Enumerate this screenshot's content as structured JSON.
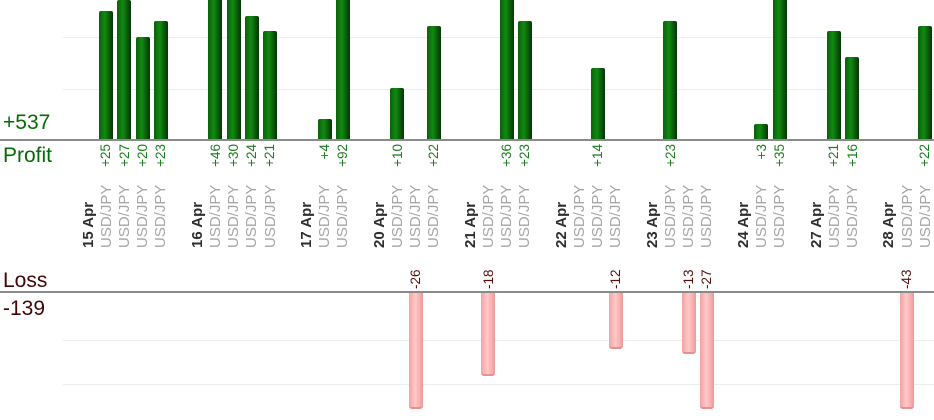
{
  "chart_data": {
    "type": "bar",
    "orientation": "vertical",
    "grid": true,
    "value_labels_rotated": true,
    "profit": {
      "total": "+537",
      "title": "Profit"
    },
    "loss": {
      "title": "Loss",
      "total": "-139"
    },
    "groups": [
      {
        "date": "15 Apr",
        "trades": [
          {
            "symbol": "USD/JPY",
            "value": 25,
            "label": "+25"
          },
          {
            "symbol": "USD/JPY",
            "value": 27,
            "label": "+27"
          },
          {
            "symbol": "USD/JPY",
            "value": 20,
            "label": "+20"
          },
          {
            "symbol": "USD/JPY",
            "value": 23,
            "label": "+23"
          }
        ]
      },
      {
        "date": "16 Apr",
        "trades": [
          {
            "symbol": "USD/JPY",
            "value": 46,
            "label": "+46"
          },
          {
            "symbol": "USD/JPY",
            "value": 30,
            "label": "+30"
          },
          {
            "symbol": "USD/JPY",
            "value": 24,
            "label": "+24"
          },
          {
            "symbol": "USD/JPY",
            "value": 21,
            "label": "+21"
          }
        ]
      },
      {
        "date": "17 Apr",
        "trades": [
          {
            "symbol": "USD/JPY",
            "value": 4,
            "label": "+4"
          },
          {
            "symbol": "USD/JPY",
            "value": 92,
            "label": "+92"
          }
        ]
      },
      {
        "date": "20 Apr",
        "trades": [
          {
            "symbol": "USD/JPY",
            "value": 10,
            "label": "+10"
          },
          {
            "symbol": "USD/JPY",
            "value": -26,
            "label": "-26"
          },
          {
            "symbol": "USD/JPY",
            "value": 22,
            "label": "+22"
          }
        ]
      },
      {
        "date": "21 Apr",
        "trades": [
          {
            "symbol": "USD/JPY",
            "value": -18,
            "label": "-18"
          },
          {
            "symbol": "USD/JPY",
            "value": 36,
            "label": "+36"
          },
          {
            "symbol": "USD/JPY",
            "value": 23,
            "label": "+23"
          }
        ]
      },
      {
        "date": "22 Apr",
        "trades": [
          {
            "symbol": "USD/JPY",
            "value": null,
            "label": ""
          },
          {
            "symbol": "USD/JPY",
            "value": 14,
            "label": "+14"
          },
          {
            "symbol": "USD/JPY",
            "value": -12,
            "label": "-12"
          }
        ]
      },
      {
        "date": "23 Apr",
        "trades": [
          {
            "symbol": "USD/JPY",
            "value": 23,
            "label": "+23"
          },
          {
            "symbol": "USD/JPY",
            "value": -13,
            "label": "-13"
          },
          {
            "symbol": "USD/JPY",
            "value": -27,
            "label": "-27"
          }
        ]
      },
      {
        "date": "24 Apr",
        "trades": [
          {
            "symbol": "USD/JPY",
            "value": 3,
            "label": "+3"
          },
          {
            "symbol": "USD/JPY",
            "value": 35,
            "label": "+35"
          }
        ]
      },
      {
        "date": "27 Apr",
        "trades": [
          {
            "symbol": "USD/JPY",
            "value": 21,
            "label": "+21"
          },
          {
            "symbol": "USD/JPY",
            "value": 16,
            "label": "+16"
          }
        ]
      },
      {
        "date": "28 Apr",
        "trades": [
          {
            "symbol": "USD/JPY",
            "value": -43,
            "label": "-43"
          },
          {
            "symbol": "USD/JPY",
            "value": 22,
            "label": "+22"
          }
        ]
      }
    ],
    "colors": {
      "profit_bar_edge": "#0b600b",
      "profit_bar_center": "#118a11",
      "profit_bar_dark_edge": "#053505",
      "loss_bar_edge": "#f4a2a2",
      "loss_bar_center": "#ffc8c8",
      "profit_value_text": "#1e7d1e",
      "loss_value_text": "#5a0f0f",
      "profit_axis_text": "#066a06",
      "loss_axis_text": "#420606",
      "date_text": "#2e2e2e",
      "symbol_text": "#a6a6a6",
      "axis_line": "#8a8a8a",
      "gridline": "#ededed"
    }
  }
}
